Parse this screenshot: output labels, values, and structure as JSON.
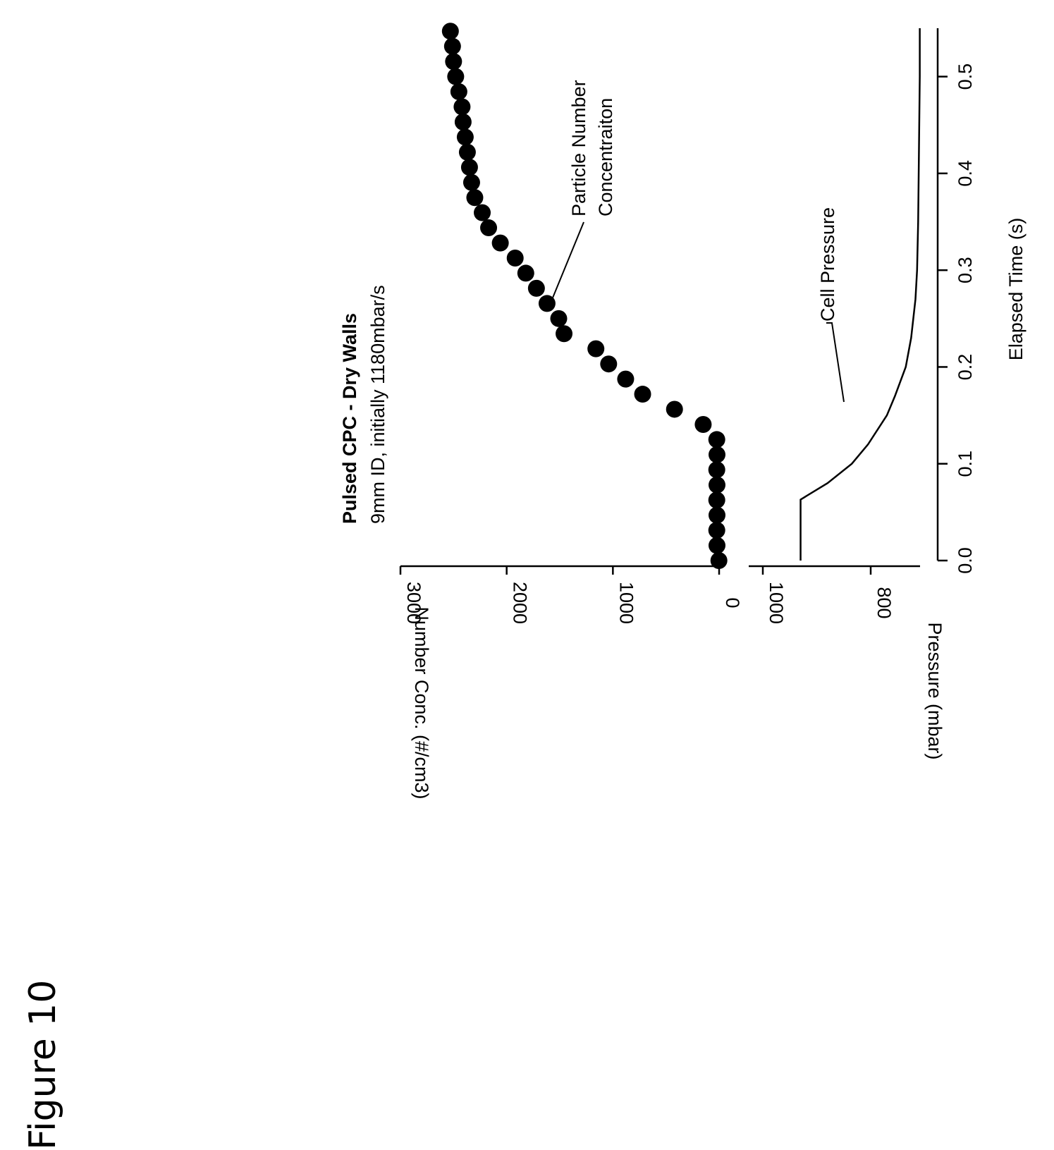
{
  "figure_label": "Figure 10",
  "chart_data": {
    "type": "scatter",
    "title": "Pulsed CPC - Dry Walls",
    "subtitle": "9mm ID, initially 1180mbar/s",
    "xlabel": "Elapsed Time (s)",
    "xlim": [
      0.0,
      0.55
    ],
    "xticks": [
      "0.0",
      "0.1",
      "0.2",
      "0.3",
      "0.4",
      "0.5"
    ],
    "panels": [
      {
        "ylabel": "Number Conc. (#/cm3)",
        "ylim": [
          0,
          3000
        ],
        "yticks": [
          "0",
          "1000",
          "2000",
          "3000"
        ],
        "annotation": [
          "Particle Number",
          "Concentraiton"
        ],
        "series": [
          {
            "marker": "filled-circle",
            "x": [
              0.0,
              0.0156,
              0.0313,
              0.0469,
              0.0625,
              0.0781,
              0.0938,
              0.1094,
              0.125,
              0.1406,
              0.1563,
              0.1719,
              0.1875,
              0.2031,
              0.2188,
              0.2344,
              0.25,
              0.2656,
              0.2813,
              0.2969,
              0.3125,
              0.3281,
              0.3438,
              0.3594,
              0.375,
              0.3906,
              0.4063,
              0.4219,
              0.4375,
              0.4531,
              0.4688,
              0.4844,
              0.5,
              0.5156,
              0.5313,
              0.5469
            ],
            "y": [
              2,
              20,
              22,
              20,
              22,
              20,
              22,
              20,
              22,
              150,
              420,
              720,
              880,
              1040,
              1160,
              1460,
              1510,
              1620,
              1720,
              1820,
              1920,
              2060,
              2170,
              2230,
              2300,
              2330,
              2350,
              2370,
              2390,
              2410,
              2420,
              2450,
              2480,
              2500,
              2510,
              2530
            ],
            "color": "#000000"
          }
        ]
      },
      {
        "ylabel": "Pressure (mbar)",
        "ylim": [
          680,
          1020
        ],
        "yticks": [
          "1000",
          "800"
        ],
        "annotation": [
          "Cell Pressure"
        ],
        "series": [
          {
            "line": "solid",
            "x": [
              0.0,
              0.05,
              0.063,
              0.08,
              0.1,
              0.12,
              0.15,
              0.17,
              0.2,
              0.23,
              0.27,
              0.3,
              0.35,
              0.4,
              0.45,
              0.5,
              0.55
            ],
            "y": [
              930,
              930,
              930,
              880,
              835,
              805,
              770,
              755,
              735,
              725,
              717,
              714,
              712,
              711,
              710,
              709,
              709
            ],
            "color": "#000000"
          }
        ]
      }
    ],
    "grid": false,
    "legend": "none"
  }
}
